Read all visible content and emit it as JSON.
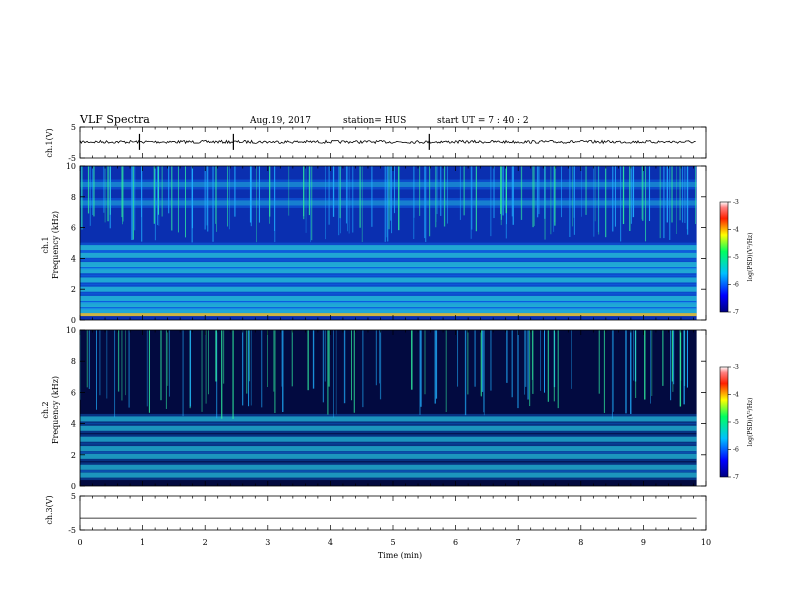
{
  "header": {
    "title": "VLF Spectra",
    "date": "Aug.19, 2017",
    "station": "station= HUS",
    "start": "start  UT =   7 : 40 : 2"
  },
  "chart_data": [
    {
      "type": "line",
      "name": "ch1-waveform",
      "ylabel": "ch.1(V)",
      "ylim": [
        -5,
        5
      ],
      "yticks": [
        "5",
        "-5"
      ],
      "baseline": 0.2,
      "spikes_min": [
        0.95,
        2.45,
        5.58
      ]
    },
    {
      "type": "heatmap",
      "name": "ch1-spectrogram",
      "ylabel": "ch.1",
      "ylabel2": "Frequency (kHz)",
      "ylim": [
        0,
        10
      ],
      "yticks": [
        "0",
        "2",
        "4",
        "6",
        "8",
        "10"
      ],
      "bands_khz": [
        0.6,
        1.0,
        1.4,
        2.0,
        2.6,
        3.2,
        3.6,
        4.2,
        4.7,
        7.6,
        8.8
      ],
      "colorbar": {
        "label": "log(PSD)(V²/Hz)",
        "ticks": [
          "-3",
          "-4",
          "-5",
          "-6",
          "-7"
        ]
      }
    },
    {
      "type": "heatmap",
      "name": "ch2-spectrogram",
      "ylabel": "ch.2",
      "ylabel2": "Frequency (kHz)",
      "ylim": [
        0,
        10
      ],
      "yticks": [
        "0",
        "2",
        "4",
        "6",
        "8",
        "10"
      ],
      "bands_khz": [
        0.7,
        1.2,
        1.9,
        2.4,
        3.0,
        3.7,
        4.3
      ],
      "colorbar": {
        "label": "log(PSD)(V²/Hz)",
        "ticks": [
          "-3",
          "-4",
          "-5",
          "-6",
          "-7"
        ]
      }
    },
    {
      "type": "line",
      "name": "ch3-waveform",
      "ylabel": "ch.3(V)",
      "ylim": [
        -5,
        5
      ],
      "yticks": [
        "5",
        "-5"
      ],
      "baseline": -1.5
    }
  ],
  "xaxis": {
    "label": "Time (min)",
    "xlim": [
      0,
      10
    ],
    "ticks": [
      "0",
      "1",
      "2",
      "3",
      "4",
      "5",
      "6",
      "7",
      "8",
      "9",
      "10"
    ],
    "data_end_min": 9.85
  },
  "colors": {
    "background_spec1": "#0a2fb0",
    "background_spec2": "#020a40",
    "band": "#30e0c0"
  }
}
